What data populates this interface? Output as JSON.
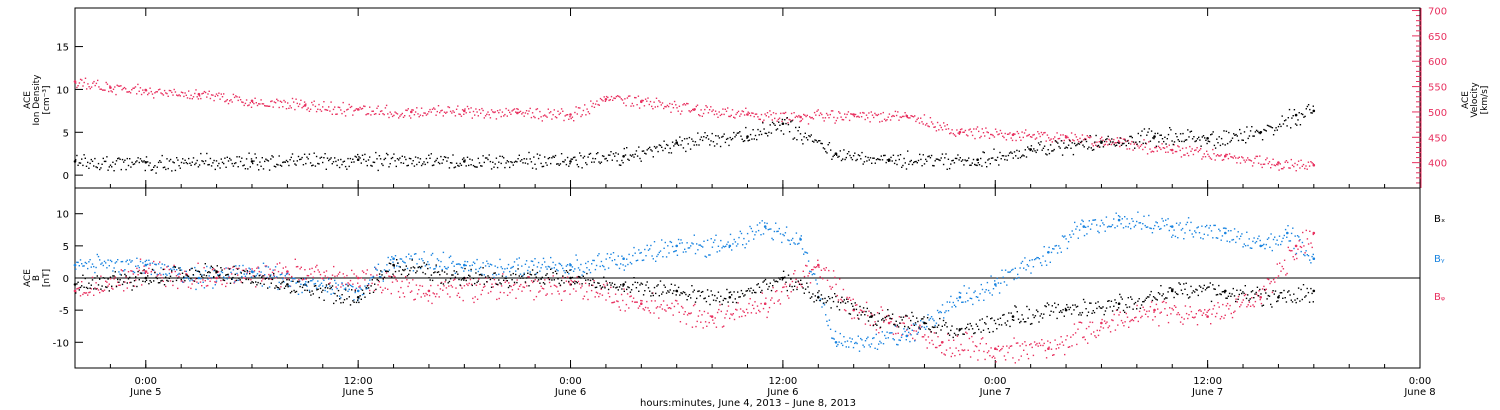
{
  "chart_data": [
    {
      "type": "scatter",
      "title": "",
      "ylabel_lines": [
        "ACE",
        "Ion Density",
        "[cm⁻³]"
      ],
      "y2label_lines": [
        "ACE",
        "Velocity",
        "[km/s]"
      ],
      "xlim": [
        "2013-06-04 20:00",
        "2013-06-08 00:00"
      ],
      "ylim": [
        -1.5,
        19.5
      ],
      "y2lim": [
        350,
        705
      ],
      "yticks": [
        0,
        5,
        10,
        15
      ],
      "y2ticks": [
        400,
        450,
        500,
        550,
        600,
        650,
        700
      ],
      "grid": false,
      "colors": {
        "density": "#000000",
        "velocity": "#e8305f"
      },
      "series": [
        {
          "key": "density",
          "axis": "left",
          "times": [
            "2013-06-04 20:00",
            "2013-06-05 00:00",
            "2013-06-05 06:00",
            "2013-06-05 12:00",
            "2013-06-05 18:00",
            "2013-06-06 00:00",
            "2013-06-06 03:00",
            "2013-06-06 06:00",
            "2013-06-06 10:00",
            "2013-06-06 12:00",
            "2013-06-06 15:00",
            "2013-06-06 18:00",
            "2013-06-06 23:00",
            "2013-06-07 02:00",
            "2013-06-07 06:00",
            "2013-06-07 09:00",
            "2013-06-07 12:00",
            "2013-06-07 15:00",
            "2013-06-07 17:00",
            "2013-06-07 18:00"
          ],
          "values": [
            1.6,
            1.5,
            1.6,
            1.8,
            1.6,
            1.6,
            2.2,
            3.8,
            4.5,
            6.0,
            2.5,
            1.8,
            1.8,
            3.0,
            3.8,
            4.5,
            4.3,
            5.0,
            7.0,
            7.5
          ]
        },
        {
          "key": "velocity",
          "axis": "right",
          "times": [
            "2013-06-04 20:00",
            "2013-06-04 22:00",
            "2013-06-05 00:00",
            "2013-06-05 03:00",
            "2013-06-05 06:00",
            "2013-06-05 09:00",
            "2013-06-05 12:00",
            "2013-06-05 15:00",
            "2013-06-05 18:00",
            "2013-06-05 21:00",
            "2013-06-06 00:00",
            "2013-06-06 02:00",
            "2013-06-06 04:00",
            "2013-06-06 07:00",
            "2013-06-06 10:00",
            "2013-06-06 13:00",
            "2013-06-06 16:00",
            "2013-06-06 19:00",
            "2013-06-06 22:00",
            "2013-06-07 01:00",
            "2013-06-07 04:00",
            "2013-06-07 07:00",
            "2013-06-07 10:00",
            "2013-06-07 13:00",
            "2013-06-07 16:00",
            "2013-06-07 18:00"
          ],
          "values": [
            560,
            548,
            543,
            535,
            522,
            513,
            505,
            500,
            502,
            498,
            495,
            525,
            520,
            505,
            495,
            490,
            495,
            492,
            460,
            455,
            450,
            440,
            425,
            413,
            400,
            395
          ]
        }
      ]
    },
    {
      "type": "scatter",
      "title": "",
      "ylabel_lines": [
        "ACE",
        "B",
        "[nT]"
      ],
      "xlim": [
        "2013-06-04 20:00",
        "2013-06-08 00:00"
      ],
      "ylim": [
        -14,
        14
      ],
      "yticks": [
        -10,
        -5,
        0,
        5,
        10
      ],
      "zero_line": true,
      "grid": false,
      "legend": {
        "position": "right",
        "entries": [
          "Bₓ",
          "Bᵧ",
          "Bᵩ"
        ]
      },
      "colors": {
        "Bx": "#000000",
        "By": "#1a84e0",
        "Bz": "#e8305f"
      },
      "series": [
        {
          "key": "Bx",
          "times": [
            "2013-06-04 20:00",
            "2013-06-05 00:00",
            "2013-06-05 04:00",
            "2013-06-05 08:00",
            "2013-06-05 12:00",
            "2013-06-05 14:00",
            "2013-06-05 18:00",
            "2013-06-06 00:00",
            "2013-06-06 03:00",
            "2013-06-06 06:00",
            "2013-06-06 09:00",
            "2013-06-06 12:00",
            "2013-06-06 14:00",
            "2013-06-06 17:00",
            "2013-06-06 20:00",
            "2013-06-06 22:00",
            "2013-06-07 01:00",
            "2013-06-07 04:00",
            "2013-06-07 07:00",
            "2013-06-07 10:00",
            "2013-06-07 13:00",
            "2013-06-07 16:00",
            "2013-06-07 18:00"
          ],
          "values": [
            -1,
            0,
            1,
            -1,
            -3,
            2,
            0,
            0,
            -1,
            -2,
            -3,
            0,
            -3,
            -6,
            -7,
            -8,
            -6,
            -5,
            -4,
            -2,
            -2,
            -3,
            -2
          ]
        },
        {
          "key": "By",
          "times": [
            "2013-06-04 20:00",
            "2013-06-05 00:00",
            "2013-06-05 03:00",
            "2013-06-05 06:00",
            "2013-06-05 09:00",
            "2013-06-05 12:00",
            "2013-06-05 14:00",
            "2013-06-05 18:00",
            "2013-06-06 00:00",
            "2013-06-06 03:00",
            "2013-06-06 06:00",
            "2013-06-06 09:00",
            "2013-06-06 11:00",
            "2013-06-06 13:00",
            "2013-06-06 15:00",
            "2013-06-06 19:00",
            "2013-06-06 22:00",
            "2013-06-07 00:00",
            "2013-06-07 03:00",
            "2013-06-07 05:00",
            "2013-06-07 07:00",
            "2013-06-07 10:00",
            "2013-06-07 13:00",
            "2013-06-07 15:00",
            "2013-06-07 16:30",
            "2013-06-07 18:00"
          ],
          "values": [
            2,
            2,
            0,
            1,
            -1,
            -2,
            3,
            2,
            2,
            3,
            5,
            5,
            8,
            6,
            -10,
            -9,
            -3,
            -1,
            4,
            8,
            9,
            8,
            7,
            5,
            7,
            3
          ]
        },
        {
          "key": "Bz",
          "times": [
            "2013-06-04 20:00",
            "2013-06-05 00:00",
            "2013-06-05 04:00",
            "2013-06-05 08:00",
            "2013-06-05 12:00",
            "2013-06-05 16:00",
            "2013-06-06 00:00",
            "2013-06-06 04:00",
            "2013-06-06 08:00",
            "2013-06-06 11:00",
            "2013-06-06 14:00",
            "2013-06-06 16:00",
            "2013-06-06 18:00",
            "2013-06-06 21:00",
            "2013-06-07 00:00",
            "2013-06-07 03:00",
            "2013-06-07 06:00",
            "2013-06-07 09:00",
            "2013-06-07 12:00",
            "2013-06-07 15:00",
            "2013-06-07 17:00",
            "2013-06-07 18:00"
          ],
          "values": [
            -2,
            1,
            0,
            1,
            0,
            -2,
            -1,
            -4,
            -6,
            -4,
            2,
            -5,
            -7,
            -10,
            -11,
            -11,
            -7,
            -5,
            -6,
            -3,
            5,
            7
          ]
        }
      ]
    }
  ],
  "x_axis": {
    "ticks": [
      {
        "time": "2013-06-05 00:00",
        "hm": "0:00",
        "date": "June 5"
      },
      {
        "time": "2013-06-05 12:00",
        "hm": "12:00",
        "date": "June 5"
      },
      {
        "time": "2013-06-06 00:00",
        "hm": "0:00",
        "date": "June 6"
      },
      {
        "time": "2013-06-06 12:00",
        "hm": "12:00",
        "date": "June 6"
      },
      {
        "time": "2013-06-07 00:00",
        "hm": "0:00",
        "date": "June 7"
      },
      {
        "time": "2013-06-07 12:00",
        "hm": "12:00",
        "date": "June 7"
      },
      {
        "time": "2013-06-08 00:00",
        "hm": "0:00",
        "date": "June 8"
      }
    ],
    "title": "hours:minutes,  June  4, 2013 – June  8, 2013"
  }
}
